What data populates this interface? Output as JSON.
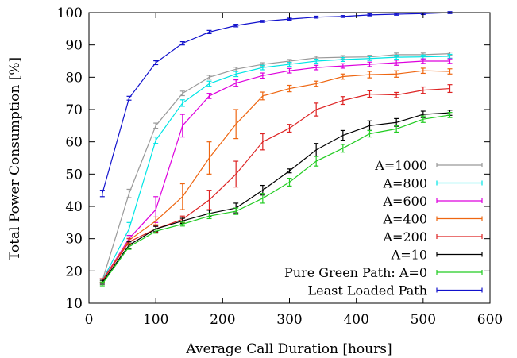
{
  "chart_data": {
    "type": "line",
    "title": "",
    "xlabel": "Average Call Duration [hours]",
    "ylabel": "Total Power Consumption [%]",
    "xlim": [
      0,
      600
    ],
    "ylim": [
      10,
      100
    ],
    "xticks": [
      0,
      100,
      200,
      300,
      400,
      500,
      600
    ],
    "yticks": [
      10,
      20,
      30,
      40,
      50,
      60,
      70,
      80,
      90,
      100
    ],
    "grid": false,
    "legend_position": "bottom-right",
    "x": [
      20,
      60,
      100,
      140,
      180,
      220,
      260,
      300,
      340,
      380,
      420,
      460,
      500,
      540
    ],
    "series": [
      {
        "name": "A=1000",
        "color": "#999999",
        "values": [
          17,
          44,
          65,
          75,
          80,
          82.5,
          84,
          85,
          86,
          86.2,
          86.3,
          87,
          87,
          87.3
        ],
        "errors": [
          0.6,
          1.3,
          0.8,
          0.7,
          0.6,
          0.6,
          0.5,
          0.5,
          0.5,
          0.5,
          0.5,
          0.5,
          0.5,
          0.5
        ]
      },
      {
        "name": "A=800",
        "color": "#00e5e5",
        "values": [
          17,
          33,
          60.5,
          72,
          78,
          81,
          83,
          84,
          85,
          85.5,
          85.8,
          86.2,
          86.3,
          86.5
        ],
        "errors": [
          0.6,
          2,
          1,
          1,
          0.8,
          0.8,
          0.7,
          0.6,
          0.6,
          0.6,
          0.6,
          0.6,
          0.6,
          0.6
        ]
      },
      {
        "name": "A=600",
        "color": "#dd00dd",
        "values": [
          17,
          30,
          39,
          65,
          74.2,
          78.2,
          80.5,
          82,
          83,
          83.5,
          84,
          84.5,
          85,
          85
        ],
        "errors": [
          0.6,
          1,
          4,
          3.5,
          0.8,
          1,
          0.8,
          0.7,
          0.7,
          0.7,
          0.7,
          0.8,
          0.7,
          0.7
        ]
      },
      {
        "name": "A=400",
        "color": "#ee6611",
        "values": [
          17,
          29.5,
          35.5,
          43,
          55,
          65.5,
          74.2,
          76.5,
          78,
          80.2,
          80.8,
          81,
          82,
          81.8
        ],
        "errors": [
          0.6,
          1,
          1.2,
          4,
          5,
          4.5,
          1.2,
          1,
          0.8,
          0.8,
          1,
          1,
          0.8,
          0.8
        ]
      },
      {
        "name": "A=200",
        "color": "#dd2222",
        "values": [
          17,
          29,
          33,
          36,
          42,
          50,
          60,
          64.2,
          70,
          72.8,
          74.8,
          74.5,
          76,
          76.5
        ],
        "errors": [
          0.6,
          1,
          1,
          1,
          3,
          4,
          2.5,
          1.2,
          2,
          1.2,
          1,
          0.8,
          1,
          1.2
        ]
      },
      {
        "name": "A=10",
        "color": "#000000",
        "values": [
          16.5,
          28,
          33,
          35.5,
          37.8,
          39.5,
          45,
          51,
          57.5,
          62,
          65,
          66,
          68.5,
          69
        ],
        "errors": [
          0.6,
          1,
          0.8,
          0.8,
          1,
          1.5,
          1.5,
          0.6,
          2,
          1.5,
          1.5,
          1.2,
          1,
          0.8
        ]
      },
      {
        "name": "Pure Green Path: A=0",
        "color": "#22cc22",
        "values": [
          16,
          27.5,
          32.3,
          34.5,
          37,
          38.5,
          42.5,
          47.5,
          54,
          58,
          62.5,
          64,
          67,
          68.3
        ],
        "errors": [
          0.6,
          0.8,
          0.6,
          0.6,
          0.8,
          1,
          1.5,
          1.2,
          1.5,
          1.2,
          1,
          1,
          1,
          0.8
        ]
      },
      {
        "name": "Least Loaded Path",
        "color": "#1111cc",
        "values": [
          44,
          73.5,
          84.5,
          90.5,
          94,
          96,
          97.3,
          98,
          98.6,
          98.8,
          99.3,
          99.5,
          99.7,
          100
        ],
        "errors": [
          1,
          0.6,
          0.6,
          0.5,
          0.5,
          0.4,
          0.3,
          0.3,
          0.3,
          0.3,
          0.3,
          0.3,
          0.3,
          0.3
        ]
      }
    ]
  }
}
